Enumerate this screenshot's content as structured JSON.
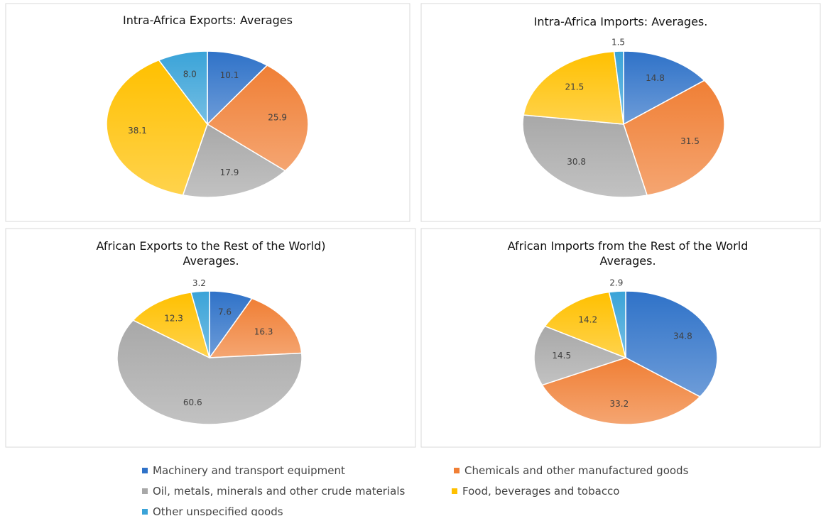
{
  "legend": [
    {
      "name": "Machinery and transport equipment",
      "color": "#2f72c8"
    },
    {
      "name": "Chemicals and other manufactured goods",
      "color": "#f07f35"
    },
    {
      "name": "Oil, metals, minerals and other crude materials",
      "color": "#a8a8a8"
    },
    {
      "name": "Food, beverages and tobacco",
      "color": "#ffc000"
    },
    {
      "name": "Other unspecified goods",
      "color": "#3aa3d8"
    }
  ],
  "chart_data": [
    {
      "type": "pie",
      "title": "Intra-Africa Exports:  Averages",
      "values": [
        10.1,
        25.9,
        17.9,
        38.1,
        8.0
      ],
      "value_labels": [
        "10.1",
        "25.9",
        "17.9",
        "38.1",
        "8.0"
      ]
    },
    {
      "type": "pie",
      "title": "Intra-Africa Imports: Averages.",
      "values": [
        14.8,
        31.5,
        30.8,
        21.5,
        1.5
      ]
    },
    {
      "type": "pie",
      "title": "African Exports to the Rest of the World) Averages.",
      "values": [
        7.6,
        16.3,
        60.6,
        12.3,
        3.2
      ]
    },
    {
      "type": "pie",
      "title": "African Imports from the  Rest of the World Averages.",
      "values": [
        34.8,
        33.2,
        14.5,
        14.2,
        2.9
      ]
    }
  ]
}
